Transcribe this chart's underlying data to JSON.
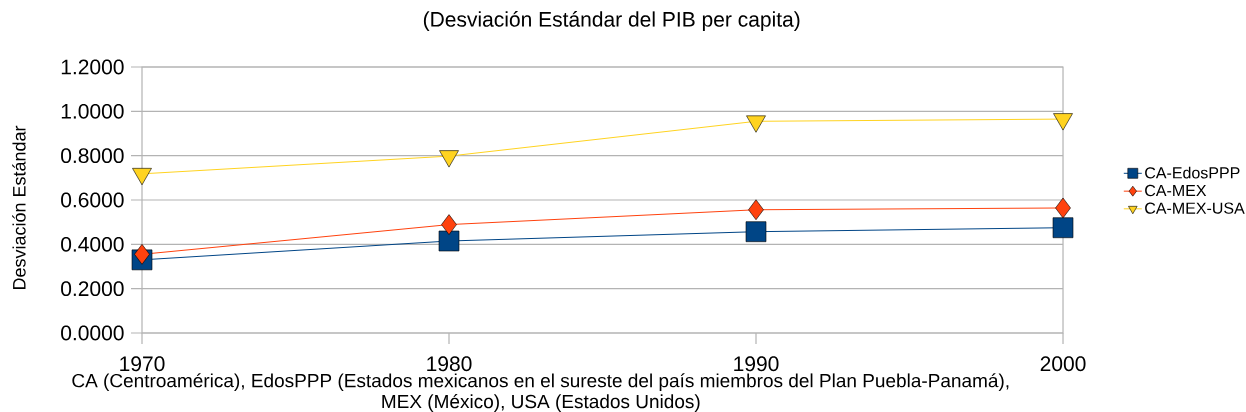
{
  "chart_data": {
    "type": "line",
    "title": "(Desviación Estándar del PIB per capita)",
    "xlabel": "CA (Centroamérica), EdosPPP (Estados mexicanos en el sureste del país miembros del Plan Puebla-Panamá), MEX (México), USA (Estados Unidos)",
    "ylabel": "Desviación Estándar",
    "categories": [
      "1970",
      "1980",
      "1990",
      "2000"
    ],
    "series": [
      {
        "name": "CA-EdosPPP",
        "color": "#004586",
        "marker": "square",
        "values": [
          0.33,
          0.415,
          0.457,
          0.475
        ]
      },
      {
        "name": "CA-MEX",
        "color": "#ff420e",
        "marker": "diamond",
        "values": [
          0.355,
          0.489,
          0.556,
          0.564
        ]
      },
      {
        "name": "CA-MEX-USA",
        "color": "#ffd320",
        "marker": "triangle",
        "values": [
          0.718,
          0.798,
          0.955,
          0.965
        ]
      }
    ],
    "ylim": [
      0,
      1.2
    ],
    "yticks": [
      {
        "value": 0,
        "label": "0.0000"
      },
      {
        "value": 0.2,
        "label": "0.2000"
      },
      {
        "value": 0.4,
        "label": "0.4000"
      },
      {
        "value": 0.6,
        "label": "0.6000"
      },
      {
        "value": 0.8,
        "label": "0.8000"
      },
      {
        "value": 1.0,
        "label": "1.0000"
      },
      {
        "value": 1.2,
        "label": "1.2000"
      }
    ],
    "grid": "y",
    "legend": "right",
    "line_style": "solid"
  }
}
